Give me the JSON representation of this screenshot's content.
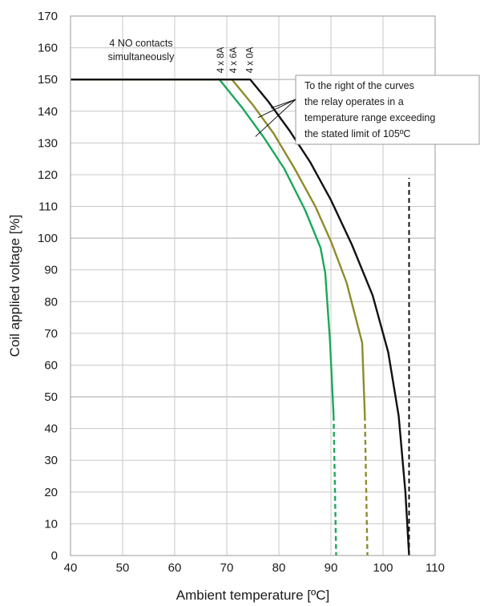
{
  "chart_data": {
    "type": "line",
    "xlabel": "Ambient temperature  [ºC]",
    "ylabel": "Coil applied voltage  [%]",
    "xlim": [
      40,
      110
    ],
    "ylim": [
      0,
      170
    ],
    "xticks": [
      40,
      50,
      60,
      70,
      80,
      90,
      100,
      110
    ],
    "yticks": [
      0,
      10,
      20,
      30,
      40,
      50,
      60,
      70,
      80,
      90,
      100,
      110,
      120,
      130,
      140,
      150,
      160,
      170
    ],
    "grid": true,
    "colors": {
      "grid": "#c8c8c8",
      "axis": "#9a9a9a"
    },
    "series": [
      {
        "name": "4 x 8A",
        "color": "#1aa85a",
        "solid": [
          [
            40,
            150
          ],
          [
            68.6,
            150
          ],
          [
            73,
            141
          ],
          [
            77,
            132
          ],
          [
            81,
            122
          ],
          [
            85,
            109
          ],
          [
            88,
            97
          ],
          [
            88.9,
            89
          ],
          [
            89.8,
            68
          ],
          [
            90.5,
            44
          ]
        ],
        "dashed": [
          [
            90.5,
            44
          ],
          [
            91,
            0
          ]
        ]
      },
      {
        "name": "4 x 6A",
        "color": "#8c8c2c",
        "solid": [
          [
            40,
            150
          ],
          [
            71,
            150
          ],
          [
            75,
            142
          ],
          [
            79,
            133
          ],
          [
            83,
            122
          ],
          [
            87,
            110
          ],
          [
            90,
            99
          ],
          [
            93,
            86
          ],
          [
            96,
            67
          ],
          [
            96.5,
            44
          ]
        ],
        "dashed": [
          [
            96.5,
            44
          ],
          [
            97,
            0
          ]
        ]
      },
      {
        "name": "4 x 0A",
        "color": "#111111",
        "solid": [
          [
            40,
            150
          ],
          [
            74.5,
            150
          ],
          [
            78,
            143
          ],
          [
            82,
            134
          ],
          [
            86,
            124
          ],
          [
            90,
            112
          ],
          [
            94,
            98
          ],
          [
            98,
            82
          ],
          [
            101,
            64
          ],
          [
            103,
            44
          ],
          [
            104.3,
            20
          ],
          [
            105,
            0
          ]
        ],
        "dashed": []
      }
    ],
    "limit_line": {
      "x": 105,
      "y_from": 0,
      "y_to": 119,
      "color": "#111111"
    },
    "annotations": {
      "contacts_line1": "4 NO contacts",
      "contacts_line2": "simultaneously",
      "box_lines": [
        "To the right of the curves",
        "the relay operates in a",
        "temperature range exceeding",
        "the stated limit of 105ºC"
      ],
      "box_pointer_ends": [
        [
          76,
          138
        ],
        [
          78.5,
          141
        ],
        [
          75.5,
          132
        ]
      ]
    }
  }
}
